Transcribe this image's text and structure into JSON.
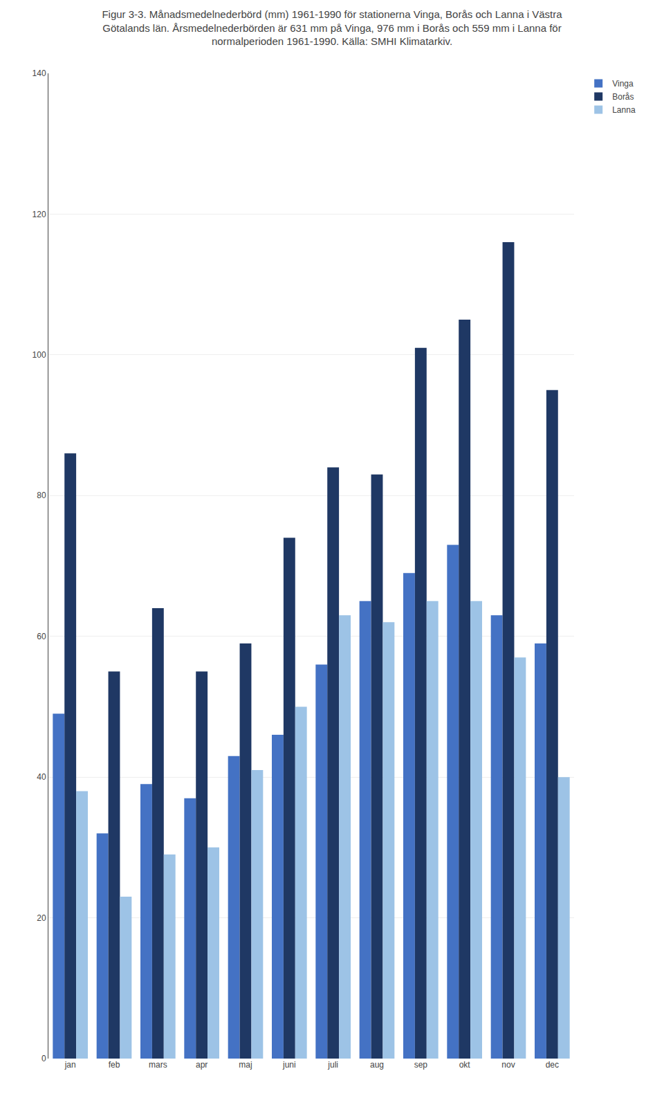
{
  "chart_data": {
    "type": "bar",
    "title": "Figur 3-3. Månadsmedelnederbörd (mm) 1961-1990 för stationerna Vinga, Borås och Lanna i Västra Götalands län. Årsmedelnederbörden är 631 mm på Vinga, 976 mm i Borås och 559 mm i Lanna för normalperioden 1961-1990. Källa: SMHI Klimatarkiv.",
    "categories": [
      "jan",
      "feb",
      "mars",
      "apr",
      "maj",
      "juni",
      "juli",
      "aug",
      "sep",
      "okt",
      "nov",
      "dec"
    ],
    "series": [
      {
        "name": "Vinga",
        "color": "#4472C4",
        "values": [
          49,
          32,
          39,
          37,
          43,
          46,
          56,
          65,
          69,
          73,
          63,
          59
        ]
      },
      {
        "name": "Borås",
        "color": "#1F3864",
        "values": [
          86,
          55,
          64,
          55,
          59,
          74,
          84,
          83,
          101,
          105,
          116,
          95
        ]
      },
      {
        "name": "Lanna",
        "color": "#9DC3E6",
        "values": [
          38,
          23,
          29,
          30,
          41,
          50,
          63,
          62,
          65,
          65,
          57,
          40
        ]
      }
    ],
    "ylim": [
      0,
      140
    ],
    "yticks": [
      0,
      20,
      40,
      60,
      80,
      100,
      120,
      140
    ],
    "grid": true,
    "legend": "right"
  }
}
